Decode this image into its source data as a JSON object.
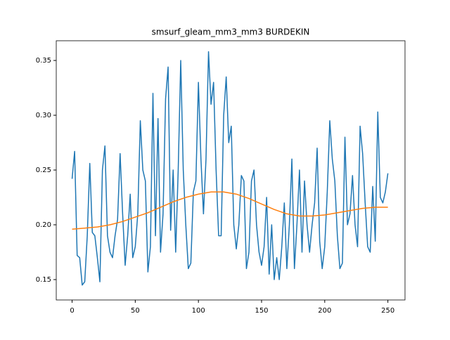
{
  "chart_data": {
    "type": "line",
    "title": "smsurf_gleam_mm3_mm3 BURDEKIN",
    "xlim": [
      -12.55,
      263.55
    ],
    "ylim": [
      0.1314,
      0.368
    ],
    "xticks": [
      0,
      50,
      100,
      150,
      200,
      250
    ],
    "yticks": [
      0.15,
      {
        "value": 0.2,
        "label": "0.20"
      },
      0.25,
      {
        "value": 0.3,
        "label": "0.30"
      },
      0.35
    ],
    "grid": false,
    "series": [
      {
        "color": "#1f77b4",
        "x": [
          0,
          2,
          4,
          6,
          8,
          10,
          12,
          14,
          16,
          18,
          20,
          22,
          24,
          26,
          28,
          30,
          32,
          34,
          36,
          38,
          40,
          42,
          44,
          46,
          48,
          50,
          52,
          54,
          56,
          58,
          60,
          62,
          64,
          66,
          68,
          70,
          72,
          74,
          76,
          78,
          80,
          82,
          84,
          86,
          88,
          90,
          92,
          94,
          96,
          98,
          100,
          102,
          104,
          106,
          108,
          110,
          112,
          114,
          116,
          118,
          120,
          122,
          124,
          126,
          128,
          130,
          132,
          134,
          136,
          138,
          140,
          142,
          144,
          146,
          148,
          150,
          152,
          154,
          156,
          158,
          160,
          162,
          164,
          166,
          168,
          170,
          172,
          174,
          176,
          178,
          180,
          182,
          184,
          186,
          188,
          190,
          192,
          194,
          196,
          198,
          200,
          202,
          204,
          206,
          208,
          210,
          212,
          214,
          216,
          218,
          220,
          222,
          224,
          226,
          228,
          230,
          232,
          234,
          236,
          238,
          240,
          242,
          244,
          246,
          248,
          250
        ],
        "values": [
          0.242,
          0.267,
          0.172,
          0.17,
          0.145,
          0.148,
          0.19,
          0.256,
          0.193,
          0.19,
          0.17,
          0.148,
          0.25,
          0.272,
          0.19,
          0.175,
          0.17,
          0.19,
          0.205,
          0.265,
          0.21,
          0.163,
          0.19,
          0.228,
          0.17,
          0.18,
          0.21,
          0.295,
          0.25,
          0.24,
          0.157,
          0.18,
          0.32,
          0.19,
          0.297,
          0.175,
          0.21,
          0.315,
          0.344,
          0.195,
          0.25,
          0.175,
          0.25,
          0.35,
          0.25,
          0.2,
          0.16,
          0.165,
          0.23,
          0.24,
          0.33,
          0.26,
          0.21,
          0.26,
          0.358,
          0.31,
          0.33,
          0.25,
          0.19,
          0.19,
          0.3,
          0.335,
          0.275,
          0.29,
          0.2,
          0.178,
          0.2,
          0.245,
          0.24,
          0.16,
          0.175,
          0.24,
          0.25,
          0.2,
          0.175,
          0.163,
          0.18,
          0.225,
          0.155,
          0.2,
          0.15,
          0.17,
          0.15,
          0.18,
          0.22,
          0.16,
          0.2,
          0.26,
          0.16,
          0.2,
          0.25,
          0.175,
          0.24,
          0.2,
          0.175,
          0.2,
          0.22,
          0.27,
          0.185,
          0.16,
          0.18,
          0.23,
          0.295,
          0.26,
          0.24,
          0.19,
          0.16,
          0.165,
          0.28,
          0.2,
          0.21,
          0.245,
          0.2,
          0.18,
          0.29,
          0.265,
          0.22,
          0.18,
          0.175,
          0.235,
          0.185,
          0.303,
          0.225,
          0.22,
          0.23,
          0.247
        ]
      },
      {
        "color": "#ff7f0e",
        "x": [
          0,
          10,
          20,
          30,
          40,
          50,
          60,
          70,
          80,
          90,
          100,
          110,
          120,
          130,
          140,
          150,
          160,
          170,
          180,
          190,
          200,
          210,
          220,
          230,
          240,
          250
        ],
        "values": [
          0.196,
          0.197,
          0.198,
          0.2,
          0.203,
          0.207,
          0.211,
          0.216,
          0.221,
          0.225,
          0.228,
          0.23,
          0.23,
          0.228,
          0.224,
          0.219,
          0.214,
          0.21,
          0.208,
          0.208,
          0.209,
          0.211,
          0.213,
          0.215,
          0.216,
          0.216
        ]
      }
    ]
  }
}
